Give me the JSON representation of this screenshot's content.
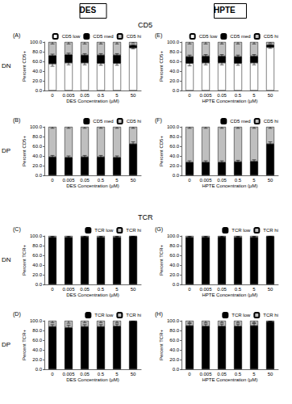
{
  "layout_labels": {
    "columns": [
      "DES",
      "HPTE"
    ],
    "sections": [
      "CD5",
      "TCR"
    ],
    "rows": [
      "DN",
      "DP"
    ]
  },
  "chart_data": [
    {
      "type": "bar",
      "title": "(A)",
      "stacked": true,
      "grid": false,
      "legend": "top right",
      "xlabel": "DES Concentration (µM)",
      "ylabel": "Percent CD5+",
      "categories": [
        "0",
        "0.005",
        "0.05",
        "0.5",
        "5",
        "50"
      ],
      "ylim": [
        0,
        100
      ],
      "yticks": [
        {
          "value": 0,
          "label": "0.0"
        },
        {
          "value": 20,
          "label": "20.0"
        },
        {
          "value": 40,
          "label": "40.0"
        },
        {
          "value": 60,
          "label": "60.0"
        },
        {
          "value": 80,
          "label": "80.0"
        },
        {
          "value": 100,
          "label": "100.0"
        }
      ],
      "series": [
        {
          "name": "CD5 low",
          "color": "#ffffff",
          "values": [
            55,
            57,
            57,
            56,
            56,
            88
          ],
          "errors": [
            5,
            4,
            4,
            4,
            4,
            2
          ]
        },
        {
          "name": "CD5 med",
          "color": "#000000",
          "values": [
            17,
            17,
            16,
            17,
            17,
            5
          ],
          "errors": [
            3,
            3,
            3,
            3,
            3,
            1
          ]
        },
        {
          "name": "CD5 hi",
          "color": "#bfbfbf",
          "values": [
            28,
            26,
            27,
            27,
            27,
            7
          ],
          "errors": [
            4,
            4,
            4,
            4,
            4,
            2
          ]
        }
      ]
    },
    {
      "type": "bar",
      "title": "(B)",
      "stacked": true,
      "grid": false,
      "legend": "top right",
      "xlabel": "DES Concentration (µM)",
      "ylabel": "Percent CD5+",
      "categories": [
        "0",
        "0.005",
        "0.05",
        "0.5",
        "5",
        "50"
      ],
      "ylim": [
        0,
        100
      ],
      "yticks": [
        {
          "value": 0,
          "label": "0.0"
        },
        {
          "value": 20,
          "label": "20.0"
        },
        {
          "value": 40,
          "label": "40.0"
        },
        {
          "value": 60,
          "label": "60.0"
        },
        {
          "value": 80,
          "label": "80.0"
        },
        {
          "value": 100,
          "label": "100.0"
        }
      ],
      "series": [
        {
          "name": "CD5 med",
          "color": "#000000",
          "values": [
            38,
            37,
            38,
            38,
            37,
            65
          ],
          "errors": [
            3,
            3,
            3,
            3,
            3,
            4
          ]
        },
        {
          "name": "CD5 hi",
          "color": "#bfbfbf",
          "values": [
            62,
            63,
            62,
            62,
            63,
            35
          ],
          "errors": [
            3,
            3,
            3,
            3,
            3,
            3
          ]
        }
      ]
    },
    {
      "type": "bar",
      "title": "(C)",
      "stacked": true,
      "grid": false,
      "legend": "top right",
      "xlabel": "DES Concentration (µM)",
      "ylabel": "Percent TCR+",
      "categories": [
        "0",
        "0.005",
        "0.05",
        "0.5",
        "5",
        "50"
      ],
      "ylim": [
        0,
        100
      ],
      "yticks": [
        {
          "value": 0,
          "label": "0.0"
        },
        {
          "value": 20,
          "label": "20.0"
        },
        {
          "value": 40,
          "label": "40.0"
        },
        {
          "value": 60,
          "label": "60.0"
        },
        {
          "value": 80,
          "label": "80.0"
        },
        {
          "value": 100,
          "label": "100.0"
        }
      ],
      "series": [
        {
          "name": "TCR low",
          "color": "#000000",
          "values": [
            97,
            97,
            98,
            97,
            97,
            99
          ],
          "errors": [
            2,
            2,
            2,
            2,
            2,
            1
          ]
        },
        {
          "name": "TCR hi",
          "color": "#bfbfbf",
          "values": [
            3,
            3,
            2,
            3,
            3,
            1
          ],
          "errors": [
            2,
            2,
            2,
            2,
            2,
            1
          ]
        }
      ]
    },
    {
      "type": "bar",
      "title": "(D)",
      "stacked": true,
      "grid": false,
      "legend": "top right",
      "xlabel": "DES Concentration (µM)",
      "ylabel": "Percent TCR+",
      "categories": [
        "0",
        "0.005",
        "0.05",
        "0.5",
        "5",
        "50"
      ],
      "ylim": [
        0,
        100
      ],
      "yticks": [
        {
          "value": 0,
          "label": "0.0"
        },
        {
          "value": 20,
          "label": "20.0"
        },
        {
          "value": 40,
          "label": "40.0"
        },
        {
          "value": 60,
          "label": "60.0"
        },
        {
          "value": 80,
          "label": "80.0"
        },
        {
          "value": 100,
          "label": "100.0"
        }
      ],
      "series": [
        {
          "name": "TCR low",
          "color": "#000000",
          "values": [
            88,
            86,
            88,
            88,
            89,
            99
          ],
          "errors": [
            4,
            5,
            4,
            4,
            4,
            1
          ]
        },
        {
          "name": "TCR hi",
          "color": "#bfbfbf",
          "values": [
            12,
            14,
            12,
            12,
            11,
            1
          ],
          "errors": [
            4,
            5,
            4,
            4,
            4,
            1
          ]
        }
      ]
    },
    {
      "type": "bar",
      "title": "(E)",
      "stacked": true,
      "grid": false,
      "legend": "top right",
      "xlabel": "HPTE Concentration (µM)",
      "ylabel": "Percent CD5+",
      "categories": [
        "0",
        "0.005",
        "0.05",
        "0.5",
        "5",
        "50"
      ],
      "ylim": [
        0,
        100
      ],
      "yticks": [
        {
          "value": 0,
          "label": "0.0"
        },
        {
          "value": 20,
          "label": "20.0"
        },
        {
          "value": 40,
          "label": "40.0"
        },
        {
          "value": 60,
          "label": "60.0"
        },
        {
          "value": 80,
          "label": "80.0"
        },
        {
          "value": 100,
          "label": "100.0"
        }
      ],
      "series": [
        {
          "name": "CD5 low",
          "color": "#ffffff",
          "values": [
            56,
            57,
            57,
            56,
            57,
            89
          ],
          "errors": [
            5,
            4,
            4,
            4,
            4,
            2
          ]
        },
        {
          "name": "CD5 med",
          "color": "#000000",
          "values": [
            14,
            14,
            14,
            14,
            14,
            5
          ],
          "errors": [
            3,
            3,
            3,
            3,
            3,
            1
          ]
        },
        {
          "name": "CD5 hi",
          "color": "#bfbfbf",
          "values": [
            30,
            29,
            29,
            30,
            29,
            6
          ],
          "errors": [
            4,
            4,
            4,
            4,
            4,
            2
          ]
        }
      ]
    },
    {
      "type": "bar",
      "title": "(F)",
      "stacked": true,
      "grid": false,
      "legend": "top right",
      "xlabel": "HPTE Concentration (µM)",
      "ylabel": "Percent CD5+",
      "categories": [
        "0",
        "0.005",
        "0.05",
        "0.5",
        "5",
        "50"
      ],
      "ylim": [
        0,
        100
      ],
      "yticks": [
        {
          "value": 0,
          "label": "0.0"
        },
        {
          "value": 20,
          "label": "20.0"
        },
        {
          "value": 40,
          "label": "40.0"
        },
        {
          "value": 60,
          "label": "60.0"
        },
        {
          "value": 80,
          "label": "80.0"
        },
        {
          "value": 100,
          "label": "100.0"
        }
      ],
      "series": [
        {
          "name": "CD5 med",
          "color": "#000000",
          "values": [
            27,
            27,
            27,
            28,
            29,
            65
          ],
          "errors": [
            3,
            3,
            3,
            3,
            3,
            4
          ]
        },
        {
          "name": "CD5 hi",
          "color": "#bfbfbf",
          "values": [
            73,
            73,
            73,
            72,
            71,
            35
          ],
          "errors": [
            3,
            3,
            3,
            3,
            3,
            3
          ]
        }
      ]
    },
    {
      "type": "bar",
      "title": "(G)",
      "stacked": true,
      "grid": false,
      "legend": "top right",
      "xlabel": "HPTE Concentration (µM)",
      "ylabel": "Percent TCR+",
      "categories": [
        "0",
        "0.005",
        "0.05",
        "0.5",
        "5",
        "50"
      ],
      "ylim": [
        0,
        100
      ],
      "yticks": [
        {
          "value": 0,
          "label": "0.0"
        },
        {
          "value": 20,
          "label": "20.0"
        },
        {
          "value": 40,
          "label": "40.0"
        },
        {
          "value": 60,
          "label": "60.0"
        },
        {
          "value": 80,
          "label": "80.0"
        },
        {
          "value": 100,
          "label": "100.0"
        }
      ],
      "series": [
        {
          "name": "TCR low",
          "color": "#000000",
          "values": [
            97,
            97,
            98,
            97,
            97,
            99
          ],
          "errors": [
            2,
            2,
            2,
            2,
            2,
            1
          ]
        },
        {
          "name": "TCR hi",
          "color": "#bfbfbf",
          "values": [
            3,
            3,
            2,
            3,
            3,
            1
          ],
          "errors": [
            2,
            2,
            2,
            2,
            2,
            1
          ]
        }
      ]
    },
    {
      "type": "bar",
      "title": "(H)",
      "stacked": true,
      "grid": false,
      "legend": "top right",
      "xlabel": "HPTE Concentration (µM)",
      "ylabel": "Percent TCR+",
      "categories": [
        "0",
        "0.005",
        "0.05",
        "0.5",
        "5",
        "50"
      ],
      "ylim": [
        0,
        100
      ],
      "yticks": [
        {
          "value": 0,
          "label": "0.0"
        },
        {
          "value": 20,
          "label": "20.0"
        },
        {
          "value": 40,
          "label": "40.0"
        },
        {
          "value": 60,
          "label": "60.0"
        },
        {
          "value": 80,
          "label": "80.0"
        },
        {
          "value": 100,
          "label": "100.0"
        }
      ],
      "series": [
        {
          "name": "TCR low",
          "color": "#000000",
          "values": [
            90,
            89,
            89,
            89,
            90,
            98
          ],
          "errors": [
            4,
            4,
            4,
            4,
            4,
            1
          ]
        },
        {
          "name": "TCR hi",
          "color": "#bfbfbf",
          "values": [
            10,
            11,
            11,
            11,
            10,
            2
          ],
          "errors": [
            4,
            4,
            4,
            4,
            4,
            1
          ]
        }
      ]
    }
  ]
}
